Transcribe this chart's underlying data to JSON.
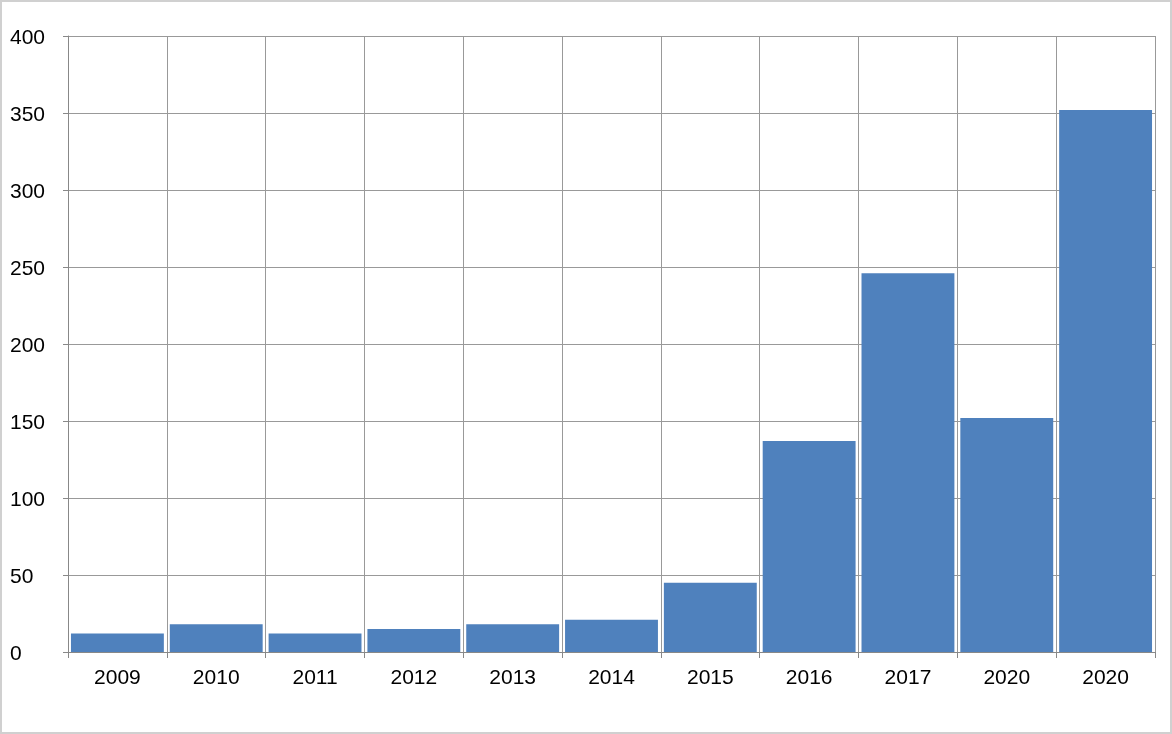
{
  "chart_data": {
    "type": "bar",
    "categories": [
      "2009",
      "2010",
      "2011",
      "2012",
      "2013",
      "2014",
      "2015",
      "2016",
      "2017",
      "2020",
      "2020"
    ],
    "values": [
      12,
      18,
      12,
      15,
      18,
      21,
      45,
      137,
      246,
      152,
      352
    ],
    "color": "#4f81bd",
    "ylim": [
      0,
      400
    ],
    "yticks": [
      0,
      50,
      100,
      150,
      200,
      250,
      300,
      350,
      400
    ],
    "grid": true
  }
}
